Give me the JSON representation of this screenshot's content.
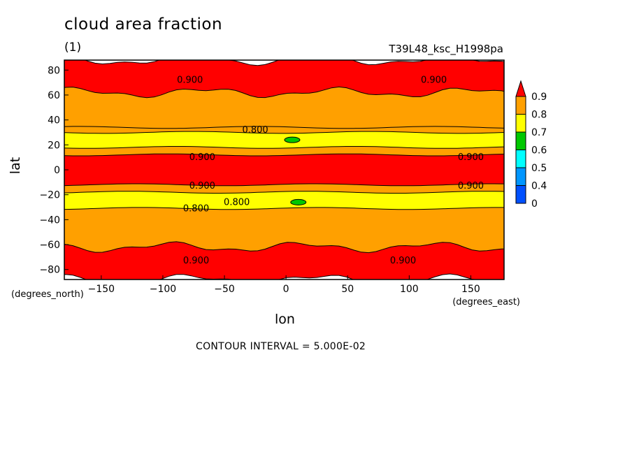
{
  "chart_data": {
    "type": "heatmap",
    "title": "cloud area fraction",
    "subtitle": "(1)",
    "run_id": "T39L48_ksc_H1998pa",
    "xlabel": "lon",
    "ylabel": "lat",
    "x_units": "(degrees_east)",
    "y_units": "(degrees_north)",
    "xlim": [
      -180,
      177
    ],
    "ylim": [
      -88,
      88
    ],
    "x_ticks": [
      -150,
      -100,
      -50,
      0,
      50,
      100,
      150
    ],
    "y_ticks": [
      -80,
      -60,
      -40,
      -20,
      0,
      20,
      40,
      60,
      80
    ],
    "contour_note": "CONTOUR INTERVAL = 5.000E-02",
    "colorbar": {
      "levels": [
        "0",
        "0.4",
        "0.5",
        "0.6",
        "0.7",
        "0.8",
        "0.9"
      ],
      "colors": [
        "#0050ff",
        "#0096ff",
        "#00ffff",
        "#00c800",
        "#ffff00",
        "#ffa000",
        "#ff0000"
      ]
    },
    "bands": [
      {
        "lat_min": 62,
        "lat_max": 88,
        "value": "0.9+",
        "color": "#ff0000"
      },
      {
        "lat_min": 34,
        "lat_max": 62,
        "value": "0.8-0.9",
        "color": "#ffa000"
      },
      {
        "lat_min": 18,
        "lat_max": 30,
        "value": "0.7-0.8",
        "color": "#ffff00"
      },
      {
        "lat_min": 30,
        "lat_max": 34,
        "value": "0.8-0.9",
        "color": "#ffa000"
      },
      {
        "lat_min": 12,
        "lat_max": 18,
        "value": "0.8-0.9",
        "color": "#ffa000"
      },
      {
        "lat_min": -12,
        "lat_max": 12,
        "value": "0.9+",
        "color": "#ff0000"
      },
      {
        "lat_min": -18,
        "lat_max": -12,
        "value": "0.8-0.9",
        "color": "#ffa000"
      },
      {
        "lat_min": -31,
        "lat_max": -18,
        "value": "0.7-0.8",
        "color": "#ffff00"
      },
      {
        "lat_min": -62,
        "lat_max": -31,
        "value": "0.8-0.9",
        "color": "#ffa000"
      },
      {
        "lat_min": -88,
        "lat_max": -62,
        "value": "0.9+",
        "color": "#ff0000"
      }
    ],
    "features": [
      {
        "lon": 5,
        "lat": 24,
        "value": "0.6-0.7",
        "color": "#00c800"
      },
      {
        "lon": 10,
        "lat": -26,
        "value": "0.6-0.7",
        "color": "#00c800"
      }
    ],
    "contour_labels": [
      {
        "text": "0.900",
        "lon": -78,
        "lat": 72
      },
      {
        "text": "0.900",
        "lon": 120,
        "lat": 72
      },
      {
        "text": "0.800",
        "lon": -25,
        "lat": 32
      },
      {
        "text": "0.900",
        "lon": -68,
        "lat": 10
      },
      {
        "text": "0.900",
        "lon": 150,
        "lat": 10
      },
      {
        "text": "0.900",
        "lon": -68,
        "lat": -13
      },
      {
        "text": "0.900",
        "lon": 150,
        "lat": -13
      },
      {
        "text": "0.800",
        "lon": -40,
        "lat": -26
      },
      {
        "text": "0.800",
        "lon": -73,
        "lat": -31
      },
      {
        "text": "0.900",
        "lon": -73,
        "lat": -73
      },
      {
        "text": "0.900",
        "lon": 95,
        "lat": -73
      }
    ]
  }
}
